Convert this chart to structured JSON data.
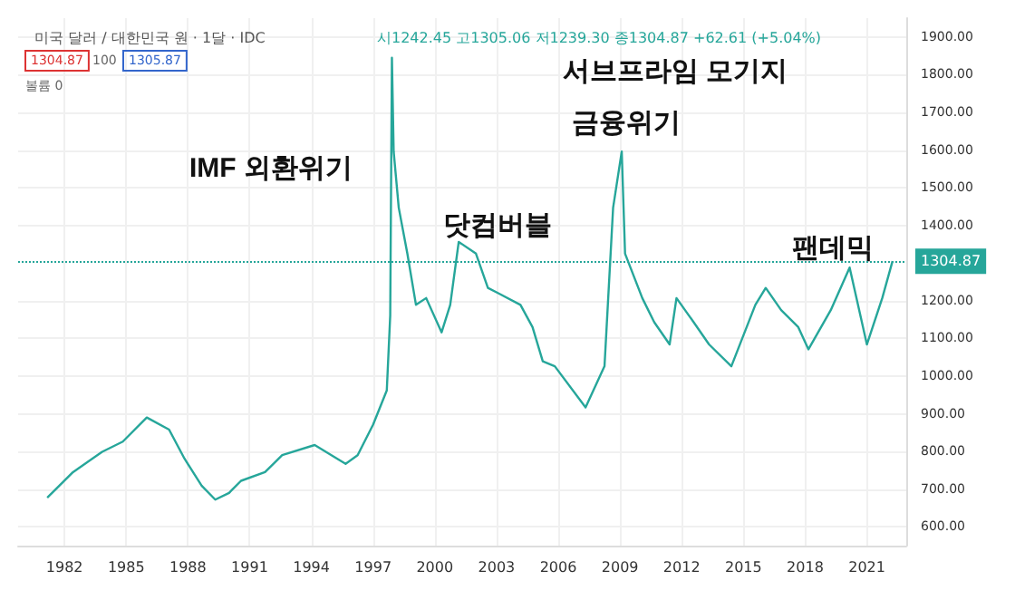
{
  "chart_data": {
    "type": "line",
    "title": "미국 달러 / 대한민국 원 · 1달 · IDC",
    "subtitle": "시1242.45 고1305.06 저1239.30 종1304.87 +62.61 (+5.04%)",
    "x": [
      "1981-03",
      "1982-06",
      "1983-11",
      "1984-11",
      "1986-01",
      "1987-02",
      "1987-11",
      "1988-09",
      "1989-05",
      "1990-01",
      "1990-08",
      "1991-10",
      "1992-08",
      "1994-03",
      "1995-04",
      "1995-09",
      "1996-04",
      "1997-01",
      "1997-09",
      "1997-11",
      "1997-12",
      "1998-01",
      "1998-04",
      "1998-09",
      "1999-02",
      "1999-08",
      "2000-05",
      "2000-10",
      "2001-03",
      "2002-01",
      "2002-08",
      "2003-02",
      "2004-03",
      "2004-10",
      "2005-04",
      "2005-11",
      "2007-05",
      "2008-04",
      "2008-09",
      "2009-02",
      "2009-04",
      "2010-02",
      "2010-09",
      "2011-06",
      "2011-10",
      "2012-08",
      "2013-05",
      "2014-06",
      "2015-08",
      "2016-02",
      "2016-11",
      "2017-09",
      "2018-03",
      "2019-04",
      "2020-03",
      "2021-01",
      "2021-10",
      "2022-04"
    ],
    "series": [
      {
        "color": "#26a69a",
        "values": [
          677,
          745,
          799,
          826,
          890,
          858,
          781,
          709,
          672,
          690,
          722,
          745,
          790,
          817,
          781,
          767,
          790,
          871,
          962,
          1161,
          1845,
          1596,
          1447,
          1325,
          1189,
          1207,
          1116,
          1189,
          1356,
          1325,
          1234,
          1220,
          1189,
          1130,
          1039,
          1026,
          917,
          1026,
          1447,
          1596,
          1325,
          1207,
          1143,
          1084,
          1207,
          1143,
          1084,
          1026,
          1189,
          1234,
          1175,
          1130,
          1071,
          1175,
          1288,
          1084,
          1207,
          1305
        ]
      }
    ],
    "xlim": [
      "1979-10",
      "2022-12"
    ],
    "xticks": [
      "1982",
      "1985",
      "1988",
      "1991",
      "1994",
      "1997",
      "2000",
      "2003",
      "2006",
      "2009",
      "2012",
      "2015",
      "2018",
      "2021"
    ],
    "ylim": [
      550,
      1950
    ],
    "yticks": [
      {
        "value": 600,
        "label": "600.00"
      },
      {
        "value": 700,
        "label": "700.00"
      },
      {
        "value": 800,
        "label": "800.00"
      },
      {
        "value": 900,
        "label": "900.00"
      },
      {
        "value": 1000,
        "label": "1000.00"
      },
      {
        "value": 1100,
        "label": "1100.00"
      },
      {
        "value": 1200,
        "label": "1200.00"
      },
      {
        "value": 1400,
        "label": "1400.00"
      },
      {
        "value": 1500,
        "label": "1500.00"
      },
      {
        "value": 1600,
        "label": "1600.00"
      },
      {
        "value": 1700,
        "label": "1700.00"
      },
      {
        "value": 1800,
        "label": "1800.00"
      },
      {
        "value": 1900,
        "label": "1900.00"
      }
    ],
    "grid": true,
    "marker": "none",
    "line_style": "solid",
    "ref_lines": [
      {
        "axis": "y",
        "value": 1304.87,
        "label": "1304.87",
        "color": "#26a69a",
        "line_style": "dotted"
      }
    ],
    "annotations": [
      "IMF 외환위기",
      "닷컴버블",
      "서브프라임 모기지",
      "금융위기",
      "팬데믹",
      "1304.87",
      "100",
      "1305.87",
      "볼륨 0"
    ]
  }
}
